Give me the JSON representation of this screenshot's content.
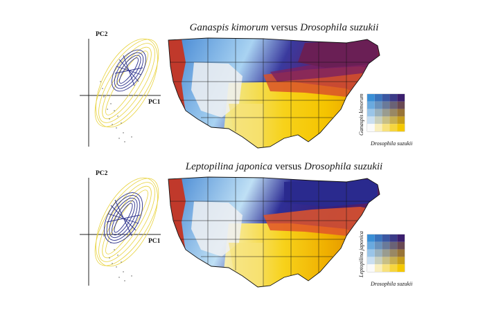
{
  "panels": [
    {
      "title_species": "Ganaspis kimorum",
      "title_joiner": "versus",
      "title_host": "Drosophila suzukii",
      "pc_axes": {
        "x_label": "PC1",
        "y_label": "PC2"
      },
      "legend": {
        "x_label": "Drosophila suzukii",
        "y_label": "Ganaspis kimorum"
      }
    },
    {
      "title_species": "Leptopilina japonica",
      "title_joiner": "versus",
      "title_host": "Drosophila suzukii",
      "pc_axes": {
        "x_label": "PC1",
        "y_label": "PC2"
      },
      "legend": {
        "x_label": "Drosophila suzukii",
        "y_label": "Leptopilina japonica"
      }
    }
  ],
  "colors": {
    "host_only": "#f4c800",
    "parasitoid_only": "#3a8fd6",
    "both_high": "#3b1f6e",
    "ellipse_host": "#e8d23a",
    "ellipse_parasitoid": "#2a2f8a",
    "west_coast": "#c0392b",
    "unsuitable": "#f2f2f2"
  }
}
